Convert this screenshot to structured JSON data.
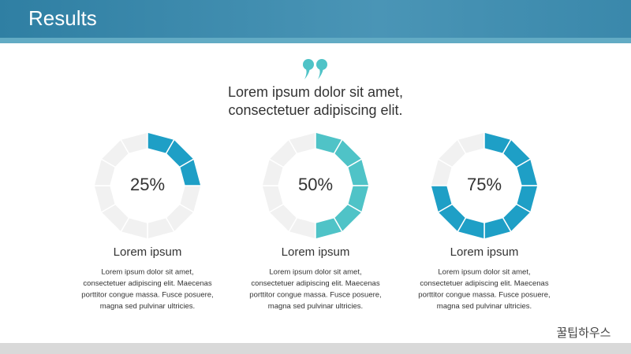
{
  "header": {
    "title": "Results"
  },
  "quote": [
    "Lorem ipsum dolor sit amet,",
    "consectetuer adipiscing elit."
  ],
  "chart_data": [
    {
      "type": "donut",
      "values": [
        25
      ],
      "value_labels": [
        "25%"
      ],
      "color": "#1e9fc6",
      "title": "Lorem ipsum",
      "description": [
        "Lorem ipsum dolor sit amet,",
        "consectetuer adipiscing elit. Maecenas",
        "porttitor congue massa. Fusce posuere,",
        "magna sed pulvinar ultricies."
      ]
    },
    {
      "type": "donut",
      "values": [
        50
      ],
      "value_labels": [
        "50%"
      ],
      "color": "#4fc3c7",
      "title": "Lorem ipsum",
      "description": [
        "Lorem ipsum dolor sit amet,",
        "consectetuer adipiscing elit. Maecenas",
        "porttitor congue massa. Fusce posuere,",
        "magna sed pulvinar ultricies."
      ]
    },
    {
      "type": "donut",
      "values": [
        75
      ],
      "value_labels": [
        "75%"
      ],
      "color": "#1e9fc6",
      "title": "Lorem ipsum",
      "description": [
        "Lorem ipsum dolor sit amet,",
        "consectetuer adipiscing elit. Maecenas",
        "porttitor congue massa. Fusce posuere,",
        "magna sed pulvinar ultricies."
      ]
    }
  ],
  "watermark": "꿀팁하우스"
}
